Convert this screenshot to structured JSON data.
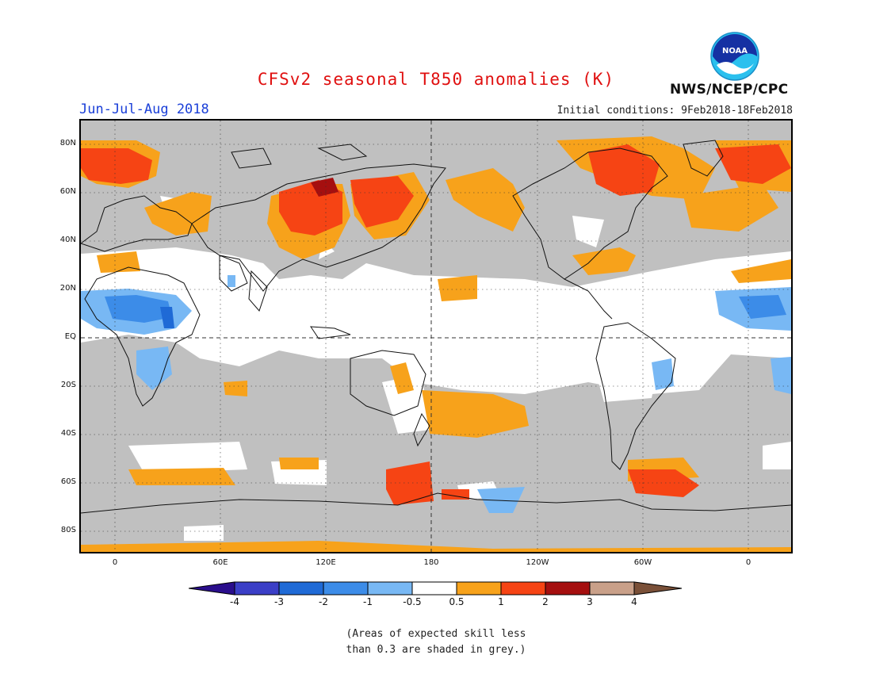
{
  "title": "CFSv2 seasonal T850 anomalies (K)",
  "season": "Jun-Jul-Aug 2018",
  "initial_conditions": "Initial conditions: 9Feb2018-18Feb2018",
  "agency": "NWS/NCEP/CPC",
  "logo_text": "NOAA",
  "map": {
    "lat_labels": [
      "80N",
      "60N",
      "40N",
      "20N",
      "EQ",
      "20S",
      "40S",
      "60S",
      "80S"
    ],
    "lon_labels": [
      "0",
      "60E",
      "120E",
      "180",
      "120W",
      "60W",
      "0"
    ]
  },
  "legend": {
    "colors": [
      "#2a0e8c",
      "#3b3fc7",
      "#1f6ad6",
      "#3c8ce8",
      "#78b8f4",
      "#ffffff",
      "#f7a21b",
      "#f64414",
      "#a50f0f",
      "#c9a089",
      "#7a5038"
    ],
    "labels": [
      "-4",
      "-3",
      "-2",
      "-1",
      "-0.5",
      "0.5",
      "1",
      "2",
      "3",
      "4"
    ]
  },
  "note": [
    "(Areas of expected skill less",
    "than 0.3 are shaded in grey.)"
  ],
  "colors": {
    "grey": "#c0c0c0",
    "white": "#ffffff",
    "orange": "#f7a21b",
    "red": "#f64414",
    "darkred": "#a50f0f",
    "lightblue": "#78b8f4",
    "blue": "#3c8ce8",
    "title": "#e01010",
    "season": "#1a3fd8"
  }
}
